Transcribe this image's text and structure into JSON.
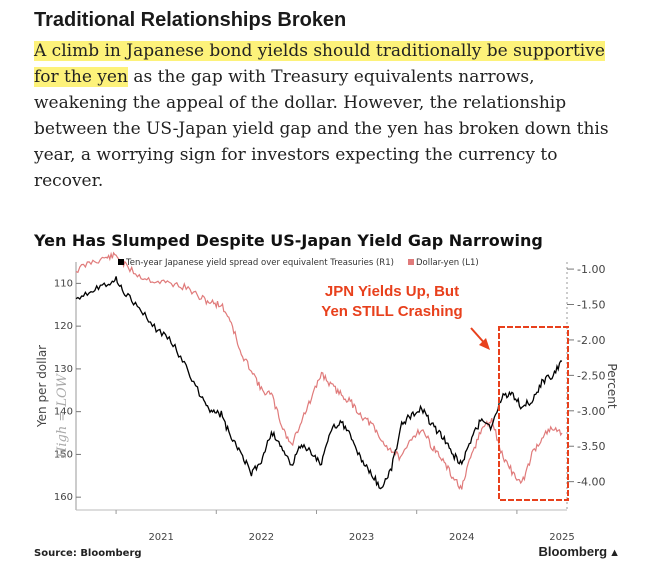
{
  "article": {
    "headline": "Traditional Relationships Broken",
    "body_highlight": "A climb in Japanese bond yields should traditionally be supportive for the yen",
    "body_rest": " as the gap with Treasury equivalents narrows, weakening the appeal of the dollar. However, the relationship between the US-Japan yield gap and the yen has broken down this year, a worrying sign for investors expecting the currency to recover."
  },
  "annotation": {
    "line1": "JPN Yields Up, But",
    "line2": "Yen STILL Crashing",
    "hand_note": "High = LOW"
  },
  "footer": {
    "source": "Source: Bloomberg",
    "brand": "Bloomberg"
  },
  "colors": {
    "spread_line": "#000000",
    "dollar_yen_line": "#e07b7b",
    "annotation": "#e8401c",
    "highlight": "#fdf27a"
  },
  "chart_data": {
    "type": "line",
    "title": "Yen Has Slumped Despite US-Japan Yield Gap Narrowing",
    "legend_position": "top",
    "left_axis": {
      "label": "Yen per dollar",
      "inverted": true,
      "range": [
        105,
        163
      ],
      "ticks": [
        110,
        120,
        130,
        140,
        150,
        160
      ]
    },
    "right_axis": {
      "label": "Percent",
      "inverted": true,
      "range": [
        -0.9,
        -4.4
      ],
      "ticks": [
        "-1.00",
        "-1.50",
        "-2.00",
        "-2.50",
        "-3.00",
        "-3.50",
        "-4.00"
      ]
    },
    "x_axis": {
      "range": [
        2020.6,
        2025.5
      ],
      "ticks": [
        "2021",
        "2022",
        "2023",
        "2024",
        "2025"
      ]
    },
    "series": [
      {
        "name": "Ten-year Japanese yield spread over equivalent Treasuries (R1)",
        "axis": "right",
        "x": [
          2020.6,
          2020.75,
          2020.9,
          2021.0,
          2021.1,
          2021.25,
          2021.4,
          2021.55,
          2021.7,
          2021.85,
          2021.95,
          2022.05,
          2022.15,
          2022.25,
          2022.35,
          2022.45,
          2022.55,
          2022.65,
          2022.75,
          2022.85,
          2022.95,
          2023.05,
          2023.15,
          2023.25,
          2023.35,
          2023.45,
          2023.55,
          2023.65,
          2023.75,
          2023.85,
          2023.95,
          2024.05,
          2024.15,
          2024.25,
          2024.35,
          2024.45,
          2024.55,
          2024.65,
          2024.75,
          2024.85,
          2024.95,
          2025.05,
          2025.15,
          2025.25,
          2025.35,
          2025.45
        ],
        "y": [
          -1.4,
          -1.3,
          -1.2,
          -1.15,
          -1.35,
          -1.6,
          -1.85,
          -2.0,
          -2.4,
          -2.8,
          -3.0,
          -3.05,
          -3.4,
          -3.6,
          -3.9,
          -3.7,
          -3.3,
          -3.5,
          -3.8,
          -3.45,
          -3.6,
          -3.75,
          -3.25,
          -3.15,
          -3.4,
          -3.7,
          -3.9,
          -4.1,
          -3.8,
          -3.2,
          -3.05,
          -2.95,
          -3.2,
          -3.35,
          -3.6,
          -3.75,
          -3.4,
          -3.1,
          -3.25,
          -2.8,
          -2.75,
          -2.95,
          -2.85,
          -2.6,
          -2.5,
          -2.3
        ]
      },
      {
        "name": "Dollar-yen (L1)",
        "axis": "left",
        "x": [
          2020.6,
          2020.75,
          2020.9,
          2021.0,
          2021.1,
          2021.25,
          2021.4,
          2021.55,
          2021.7,
          2021.85,
          2021.95,
          2022.05,
          2022.15,
          2022.25,
          2022.35,
          2022.45,
          2022.55,
          2022.65,
          2022.75,
          2022.85,
          2022.95,
          2023.05,
          2023.15,
          2023.25,
          2023.35,
          2023.45,
          2023.55,
          2023.65,
          2023.75,
          2023.85,
          2023.95,
          2024.05,
          2024.15,
          2024.25,
          2024.35,
          2024.45,
          2024.55,
          2024.65,
          2024.75,
          2024.85,
          2024.95,
          2025.05,
          2025.15,
          2025.25,
          2025.35,
          2025.45
        ],
        "y": [
          107,
          105,
          104,
          103.5,
          106,
          108.5,
          109.5,
          110,
          111,
          113.5,
          114.5,
          115,
          119,
          127,
          130,
          135,
          136,
          143,
          148,
          142,
          137,
          131,
          134,
          136,
          138,
          141,
          143,
          147,
          149,
          151,
          146,
          144,
          148,
          151,
          155,
          158,
          150,
          144,
          142,
          150,
          154,
          157,
          150,
          146,
          144,
          145
        ]
      }
    ]
  }
}
